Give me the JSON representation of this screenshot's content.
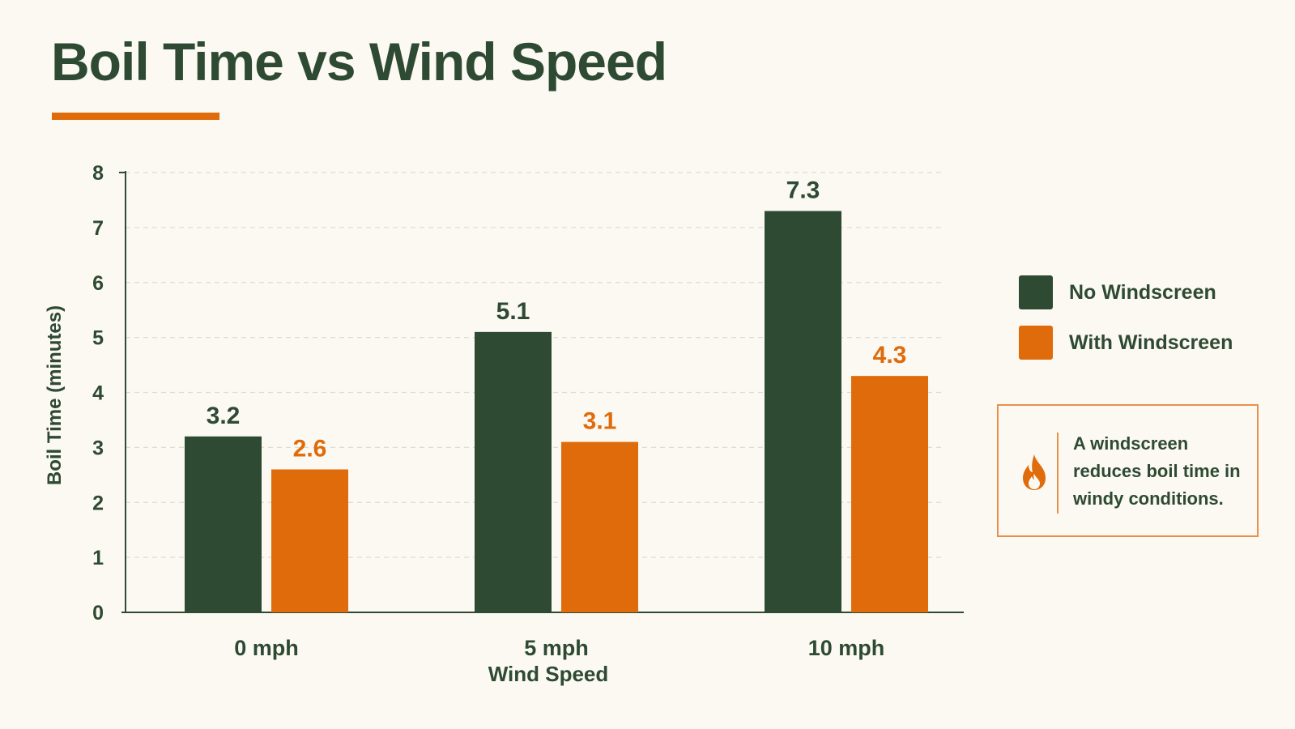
{
  "header": {
    "title": "Boil Time vs Wind Speed"
  },
  "colors": {
    "dark_green": "#2e4a33",
    "orange": "#e06b0b",
    "background": "#fbf9f2"
  },
  "chart_data": {
    "type": "bar",
    "title": "Boil Time vs Wind Speed",
    "xlabel": "Wind Speed",
    "ylabel": "Boil Time (minutes)",
    "categories": [
      "0 mph",
      "5 mph",
      "10 mph"
    ],
    "ylim": [
      0,
      8
    ],
    "yticks": [
      0,
      1,
      2,
      3,
      4,
      5,
      6,
      7,
      8
    ],
    "grid": true,
    "legend_position": "right",
    "series": [
      {
        "name": "No Windscreen",
        "values": [
          3.2,
          5.1,
          7.3
        ],
        "color": "#2e4a33"
      },
      {
        "name": "With Windscreen",
        "values": [
          2.6,
          3.1,
          4.3
        ],
        "color": "#e06b0b"
      }
    ]
  },
  "note": {
    "icon": "flame-icon",
    "text": "A windscreen reduces boil time in windy conditions."
  }
}
